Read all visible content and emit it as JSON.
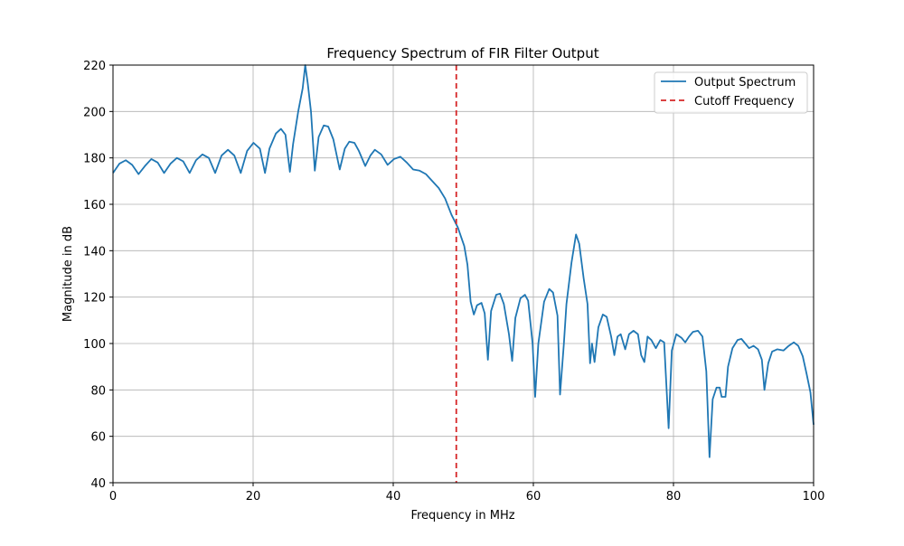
{
  "chart_data": {
    "type": "line",
    "title": "Frequency Spectrum of FIR Filter Output",
    "xlabel": "Frequency in MHz",
    "ylabel": "Magnitude in dB",
    "xlim": [
      0,
      100
    ],
    "ylim": [
      40,
      220
    ],
    "xticks": [
      0,
      20,
      40,
      60,
      80,
      100
    ],
    "yticks": [
      40,
      60,
      80,
      100,
      120,
      140,
      160,
      180,
      200,
      220
    ],
    "grid": true,
    "legend_position": "top-right",
    "series": [
      {
        "name": "Output Spectrum",
        "color": "#1f77b4",
        "style": "solid",
        "points": [
          [
            0.0,
            173.5
          ],
          [
            1.0,
            177.5
          ],
          [
            2.0,
            179.0
          ],
          [
            3.0,
            177.0
          ],
          [
            4.0,
            173.0
          ],
          [
            5.0,
            176.5
          ],
          [
            6.0,
            179.5
          ],
          [
            7.0,
            178.0
          ],
          [
            8.0,
            173.5
          ],
          [
            9.0,
            177.5
          ],
          [
            10.0,
            180.0
          ],
          [
            11.0,
            178.5
          ],
          [
            12.0,
            173.5
          ],
          [
            13.0,
            179.0
          ],
          [
            14.0,
            181.5
          ],
          [
            15.0,
            180.0
          ],
          [
            16.0,
            173.5
          ],
          [
            17.0,
            181.0
          ],
          [
            18.0,
            183.5
          ],
          [
            19.0,
            181.0
          ],
          [
            20.0,
            173.5
          ],
          [
            21.0,
            183.0
          ],
          [
            22.0,
            186.5
          ],
          [
            23.0,
            184.0
          ],
          [
            23.8,
            173.5
          ],
          [
            24.5,
            184.0
          ],
          [
            25.5,
            190.5
          ],
          [
            26.3,
            192.5
          ],
          [
            27.0,
            190.0
          ],
          [
            27.7,
            174.0
          ],
          [
            28.2,
            186.0
          ],
          [
            29.0,
            200.0
          ],
          [
            29.7,
            210.0
          ],
          [
            30.1,
            221.0
          ],
          [
            30.5,
            212.0
          ],
          [
            31.0,
            200.0
          ],
          [
            31.6,
            174.5
          ],
          [
            32.2,
            189.0
          ],
          [
            33.0,
            194.0
          ],
          [
            33.7,
            193.5
          ],
          [
            34.5,
            188.0
          ],
          [
            35.5,
            175.0
          ],
          [
            36.3,
            184.0
          ],
          [
            37.0,
            187.0
          ],
          [
            37.8,
            186.5
          ],
          [
            38.5,
            183.0
          ],
          [
            39.5,
            176.5
          ],
          [
            40.3,
            181.0
          ],
          [
            41.0,
            183.5
          ],
          [
            42.0,
            181.5
          ],
          [
            43.0,
            177.0
          ],
          [
            44.0,
            179.5
          ],
          [
            45.0,
            180.5
          ],
          [
            46.0,
            178.0
          ],
          [
            47.0,
            175.0
          ],
          [
            48.0,
            174.5
          ],
          [
            49.0,
            173.0
          ],
          [
            50.0,
            170.0
          ],
          [
            51.0,
            167.0
          ],
          [
            52.0,
            162.5
          ],
          [
            53.0,
            155.5
          ],
          [
            54.0,
            150.0
          ],
          [
            55.0,
            142.0
          ],
          [
            55.5,
            134.0
          ],
          [
            56.0,
            118.0
          ],
          [
            56.5,
            112.5
          ],
          [
            57.0,
            116.5
          ],
          [
            57.7,
            117.5
          ],
          [
            58.2,
            113.0
          ],
          [
            58.7,
            93.0
          ],
          [
            59.2,
            114.0
          ],
          [
            60.0,
            121.0
          ],
          [
            60.6,
            121.5
          ],
          [
            61.2,
            117.0
          ],
          [
            62.0,
            104.0
          ],
          [
            62.5,
            92.5
          ],
          [
            63.0,
            111.0
          ],
          [
            63.8,
            119.5
          ],
          [
            64.5,
            121.0
          ],
          [
            65.0,
            118.5
          ],
          [
            65.7,
            100.0
          ],
          [
            66.1,
            77.0
          ],
          [
            66.6,
            100.0
          ],
          [
            67.5,
            118.0
          ],
          [
            68.3,
            123.5
          ],
          [
            68.9,
            122.0
          ],
          [
            69.6,
            112.0
          ],
          [
            70.0,
            78.0
          ],
          [
            70.6,
            100.0
          ],
          [
            71.0,
            117.0
          ],
          [
            71.8,
            135.0
          ],
          [
            72.5,
            147.0
          ],
          [
            73.0,
            143.0
          ],
          [
            73.7,
            128.0
          ],
          [
            74.3,
            117.0
          ],
          [
            74.7,
            91.5
          ],
          [
            75.0,
            100.0
          ],
          [
            75.4,
            92.0
          ],
          [
            76.0,
            107.0
          ],
          [
            76.7,
            112.5
          ],
          [
            77.3,
            111.5
          ],
          [
            78.0,
            103.0
          ],
          [
            78.5,
            95.0
          ],
          [
            79.0,
            103.0
          ],
          [
            79.5,
            104.0
          ],
          [
            80.2,
            97.5
          ],
          [
            80.8,
            104.0
          ],
          [
            81.5,
            105.5
          ],
          [
            82.2,
            104.0
          ],
          [
            82.7,
            95.0
          ],
          [
            83.2,
            92.0
          ],
          [
            83.7,
            103.0
          ],
          [
            84.3,
            101.5
          ],
          [
            85.0,
            98.0
          ],
          [
            85.7,
            101.5
          ],
          [
            86.3,
            100.5
          ],
          [
            87.0,
            63.5
          ],
          [
            87.5,
            97.0
          ],
          [
            88.2,
            104.0
          ],
          [
            89.0,
            102.5
          ],
          [
            89.6,
            100.5
          ],
          [
            90.2,
            103.0
          ],
          [
            90.8,
            105.0
          ],
          [
            91.6,
            105.5
          ],
          [
            92.3,
            103.0
          ],
          [
            92.9,
            88.0
          ],
          [
            93.4,
            51.0
          ],
          [
            93.9,
            76.0
          ],
          [
            94.5,
            81.0
          ],
          [
            95.0,
            81.0
          ],
          [
            95.3,
            77.0
          ],
          [
            95.9,
            77.0
          ],
          [
            96.3,
            90.0
          ],
          [
            97.0,
            98.0
          ],
          [
            97.8,
            101.5
          ],
          [
            98.4,
            102.0
          ],
          [
            99.0,
            100.0
          ],
          [
            99.6,
            98.0
          ],
          [
            100.3,
            99.0
          ],
          [
            101.0,
            97.5
          ],
          [
            101.6,
            93.0
          ],
          [
            102.0,
            80.0
          ],
          [
            102.6,
            91.5
          ],
          [
            103.2,
            96.5
          ],
          [
            104.0,
            97.5
          ],
          [
            105.0,
            97.0
          ],
          [
            105.8,
            99.0
          ],
          [
            106.6,
            100.5
          ],
          [
            107.3,
            99.0
          ],
          [
            108.0,
            94.5
          ],
          [
            108.6,
            87.0
          ],
          [
            109.2,
            79.0
          ],
          [
            109.7,
            65.0
          ]
        ]
      },
      {
        "name": "Cutoff Frequency",
        "color": "#d62728",
        "style": "dashed",
        "x": 49
      }
    ]
  }
}
